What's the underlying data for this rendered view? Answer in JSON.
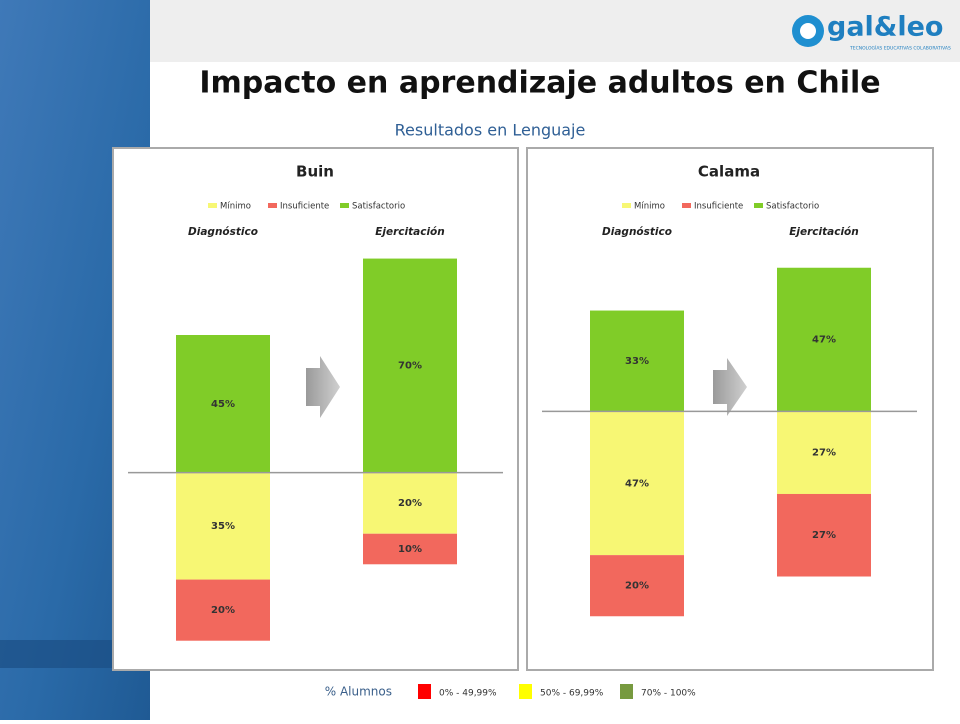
{
  "slide": {
    "title": "Impacto en aprendizaje adultos en Chile",
    "subtitle": "Resultados en Lenguaje",
    "logo": "gal&leo",
    "logo_tagline": "TECNOLOGÍAS EDUCATIVAS COLABORATIVAS",
    "legend_title": "% Alumnos",
    "legend": [
      {
        "label": "0% - 49,99%",
        "color": "#ff0000"
      },
      {
        "label": "50% - 69,99%",
        "color": "#ffff00"
      },
      {
        "label": "70% - 100%",
        "color": "#779a3f"
      }
    ]
  },
  "chart_data": [
    {
      "type": "bar",
      "stacked": "diverging",
      "title": "Buin",
      "categories": [
        "Diagnóstico",
        "Ejercitación"
      ],
      "ylim": [
        -60,
        80
      ],
      "series": [
        {
          "name": "Mínimo",
          "color": "#f7f774",
          "stack": "below",
          "values": [
            35,
            20
          ],
          "value_labels": [
            "35%",
            "20%"
          ]
        },
        {
          "name": "Insuficiente",
          "color": "#f2685d",
          "stack": "below",
          "values": [
            20,
            10
          ],
          "value_labels": [
            "20%",
            "10%"
          ]
        },
        {
          "name": "Satisfactorio",
          "color": "#80cc28",
          "stack": "above",
          "values": [
            45,
            70
          ],
          "value_labels": [
            "45%",
            "70%"
          ]
        }
      ]
    },
    {
      "type": "bar",
      "stacked": "diverging",
      "title": "Calama",
      "categories": [
        "Diagnóstico",
        "Ejercitación"
      ],
      "ylim": [
        -80,
        60
      ],
      "series": [
        {
          "name": "Mínimo",
          "color": "#f7f774",
          "stack": "below",
          "values": [
            47,
            27
          ],
          "value_labels": [
            "47%",
            "27%"
          ]
        },
        {
          "name": "Insuficiente",
          "color": "#f2685d",
          "stack": "below",
          "values": [
            20,
            27
          ],
          "value_labels": [
            "20%",
            "27%"
          ]
        },
        {
          "name": "Satisfactorio",
          "color": "#80cc28",
          "stack": "above",
          "values": [
            33,
            47
          ],
          "value_labels": [
            "33%",
            "47%"
          ]
        }
      ]
    }
  ]
}
